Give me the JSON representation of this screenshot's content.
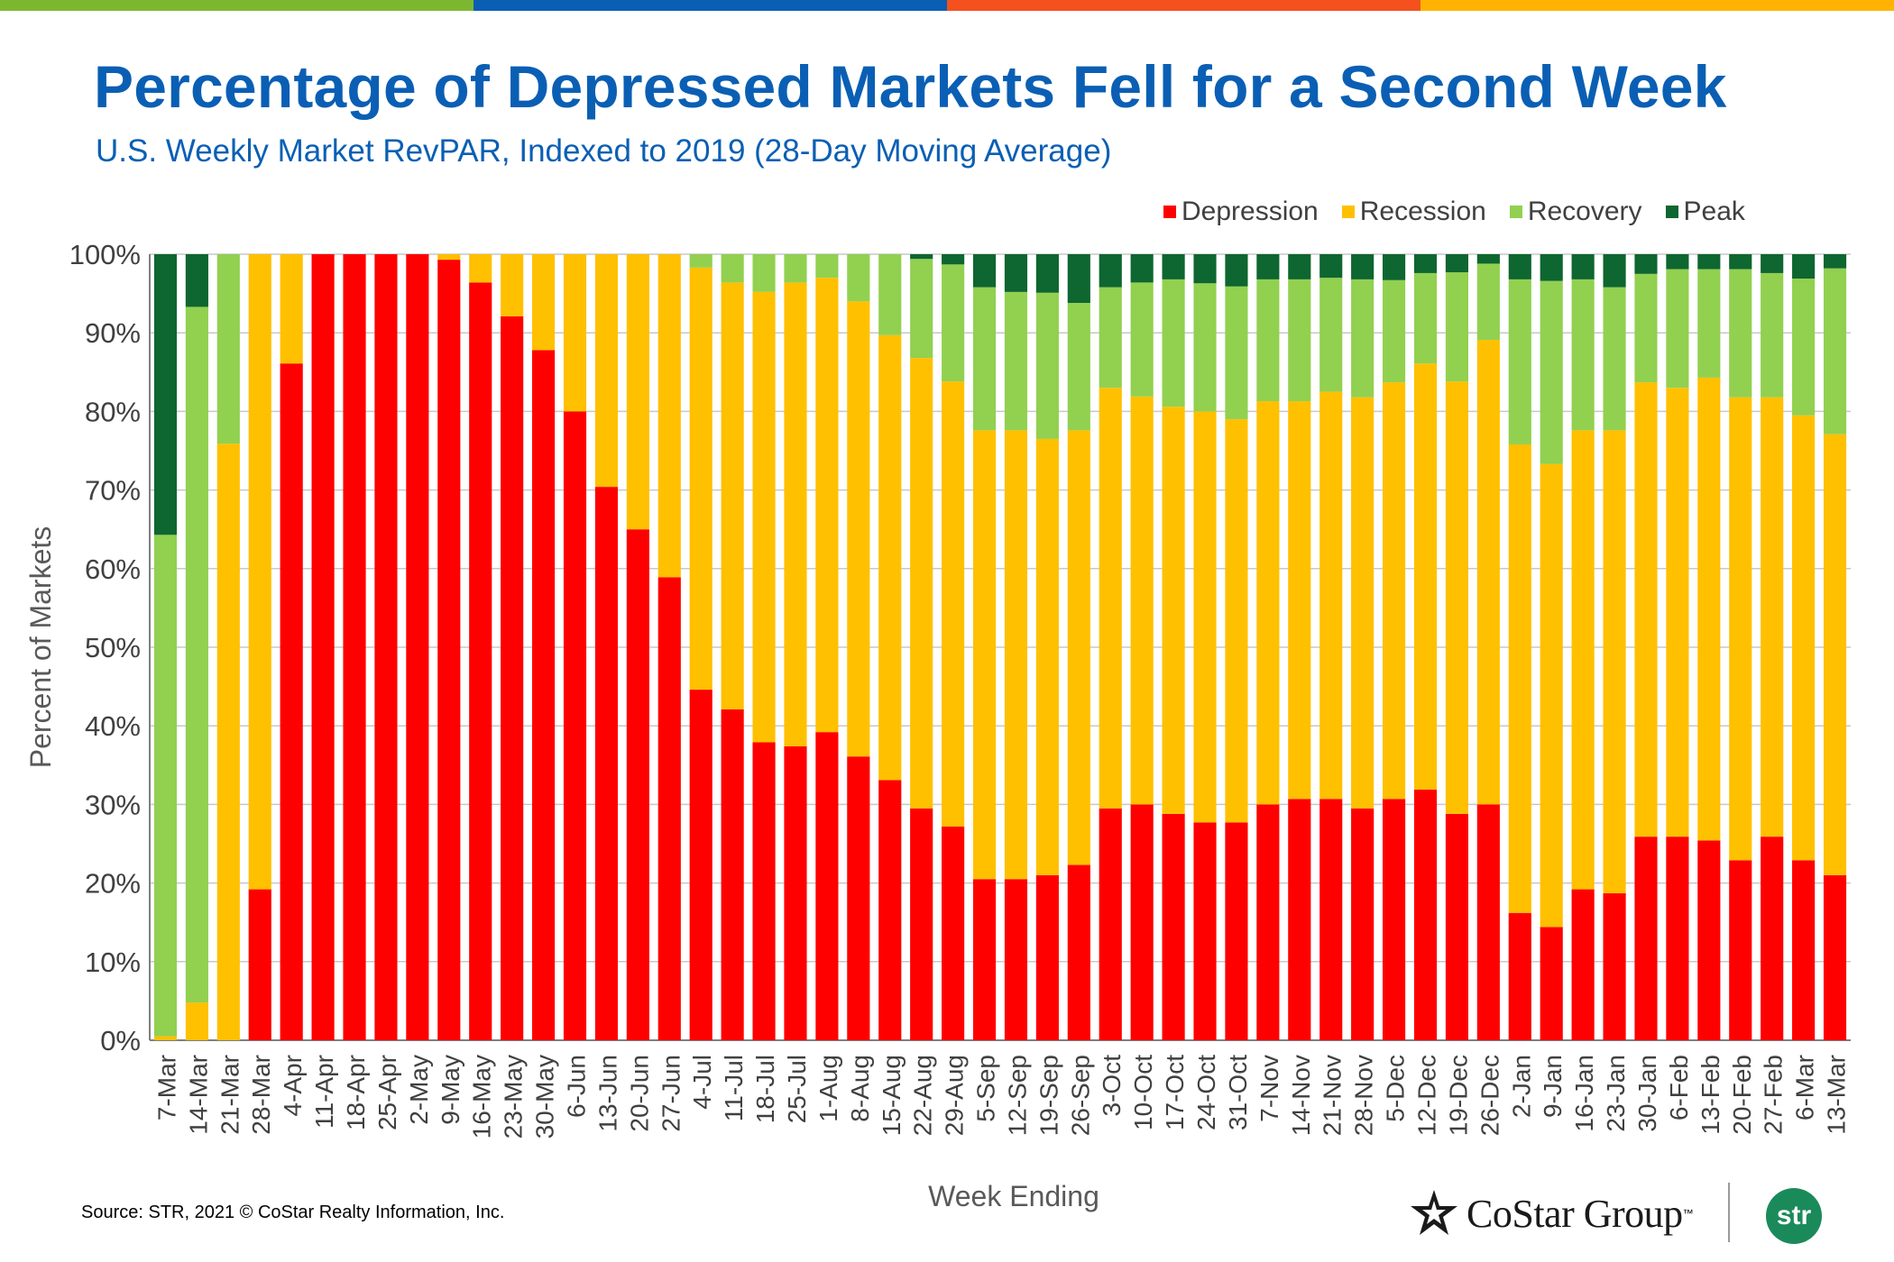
{
  "header": {
    "title": "Percentage of Depressed Markets Fell for a Second Week",
    "subtitle": "U.S. Weekly Market RevPAR, Indexed to 2019 (28-Day Moving Average)"
  },
  "top_bar_colors": [
    "#7cb82f",
    "#0a5fb4",
    "#f4511e",
    "#ffb300"
  ],
  "footer": {
    "source": "Source: STR, 2021 © CoStar Realty Information, Inc.",
    "costar_logo_text": "CoStar Group",
    "costar_tm": "™",
    "str_logo_text": "str"
  },
  "chart_data": {
    "type": "bar",
    "stacked": true,
    "title": "Percentage of Depressed Markets Fell for a Second Week",
    "subtitle": "U.S. Weekly Market RevPAR, Indexed to 2019 (28-Day Moving Average)",
    "xlabel": "Week Ending",
    "ylabel": "Percent of Markets",
    "ylim": [
      0,
      100
    ],
    "y_ticks": [
      "0%",
      "10%",
      "20%",
      "30%",
      "40%",
      "50%",
      "60%",
      "70%",
      "80%",
      "90%",
      "100%"
    ],
    "grid": true,
    "legend_position": "top-right",
    "categories": [
      "7-Mar",
      "14-Mar",
      "21-Mar",
      "28-Mar",
      "4-Apr",
      "11-Apr",
      "18-Apr",
      "25-Apr",
      "2-May",
      "9-May",
      "16-May",
      "23-May",
      "30-May",
      "6-Jun",
      "13-Jun",
      "20-Jun",
      "27-Jun",
      "4-Jul",
      "11-Jul",
      "18-Jul",
      "25-Jul",
      "1-Aug",
      "8-Aug",
      "15-Aug",
      "22-Aug",
      "29-Aug",
      "5-Sep",
      "12-Sep",
      "19-Sep",
      "26-Sep",
      "3-Oct",
      "10-Oct",
      "17-Oct",
      "24-Oct",
      "31-Oct",
      "7-Nov",
      "14-Nov",
      "21-Nov",
      "28-Nov",
      "5-Dec",
      "12-Dec",
      "19-Dec",
      "26-Dec",
      "2-Jan",
      "9-Jan",
      "16-Jan",
      "23-Jan",
      "30-Jan",
      "6-Feb",
      "13-Feb",
      "20-Feb",
      "27-Feb",
      "6-Mar",
      "13-Mar"
    ],
    "series": [
      {
        "name": "Depression",
        "color": "#fe0000",
        "values": [
          0,
          0,
          0,
          19.2,
          86.1,
          100,
          100,
          100,
          100,
          99.3,
          96.4,
          92.1,
          87.8,
          80,
          70.4,
          65,
          58.9,
          44.6,
          42.1,
          37.9,
          37.4,
          39.2,
          36.1,
          33.1,
          29.5,
          27.2,
          20.5,
          20.5,
          21,
          22.3,
          29.5,
          30,
          28.8,
          27.7,
          27.7,
          30,
          30.7,
          30.7,
          29.5,
          30.7,
          31.9,
          28.8,
          30,
          16.2,
          14.4,
          19.2,
          18.7,
          25.9,
          25.9,
          25.4,
          22.9,
          25.9,
          22.9,
          21
        ],
        "color_name": "red"
      },
      {
        "name": "Recession",
        "color": "#ffc000",
        "values": [
          0.5,
          4.8,
          75.9,
          80.8,
          13.9,
          0,
          0,
          0,
          0,
          0.7,
          3.6,
          7.9,
          12.2,
          20,
          29.6,
          35,
          41.1,
          53.7,
          54.3,
          57.3,
          59,
          57.8,
          57.9,
          56.6,
          57.3,
          56.6,
          57.1,
          57.1,
          55.5,
          55.3,
          53.5,
          51.9,
          51.8,
          52.3,
          51.3,
          51.3,
          50.6,
          51.8,
          52.3,
          53,
          54.2,
          55,
          59.1,
          59.6,
          58.9,
          58.4,
          58.9,
          57.8,
          57.1,
          58.9,
          58.9,
          55.9,
          56.6,
          56.1
        ]
      },
      {
        "name": "Recovery",
        "color": "#92d050",
        "values": [
          63.8,
          88.5,
          24.1,
          0,
          0,
          0,
          0,
          0,
          0,
          0,
          0,
          0,
          0,
          0,
          0,
          0,
          0,
          1.7,
          3.6,
          4.8,
          3.6,
          3,
          6,
          10.3,
          12.6,
          14.9,
          18.2,
          17.6,
          18.6,
          16.2,
          12.8,
          14.5,
          16.2,
          16.3,
          16.9,
          15.5,
          15.5,
          14.5,
          15,
          13,
          11.5,
          13.9,
          9.7,
          21,
          23.3,
          19.2,
          18.2,
          13.8,
          15.1,
          13.8,
          16.3,
          15.8,
          17.4,
          21.1
        ]
      },
      {
        "name": "Peak",
        "color": "#0e6630",
        "values": [
          35.7,
          6.7,
          0,
          0,
          0,
          0,
          0,
          0,
          0,
          0,
          0,
          0,
          0,
          0,
          0,
          0,
          0,
          0,
          0,
          0,
          0,
          0,
          0,
          0,
          0.6,
          1.3,
          4.2,
          4.8,
          4.9,
          6.2,
          4.2,
          3.6,
          3.2,
          3.7,
          4.1,
          3.2,
          3.2,
          3,
          3.2,
          3.3,
          2.4,
          2.3,
          1.2,
          3.2,
          3.4,
          3.2,
          4.2,
          2.5,
          1.9,
          1.9,
          1.9,
          2.4,
          3.1,
          1.8
        ]
      }
    ]
  }
}
